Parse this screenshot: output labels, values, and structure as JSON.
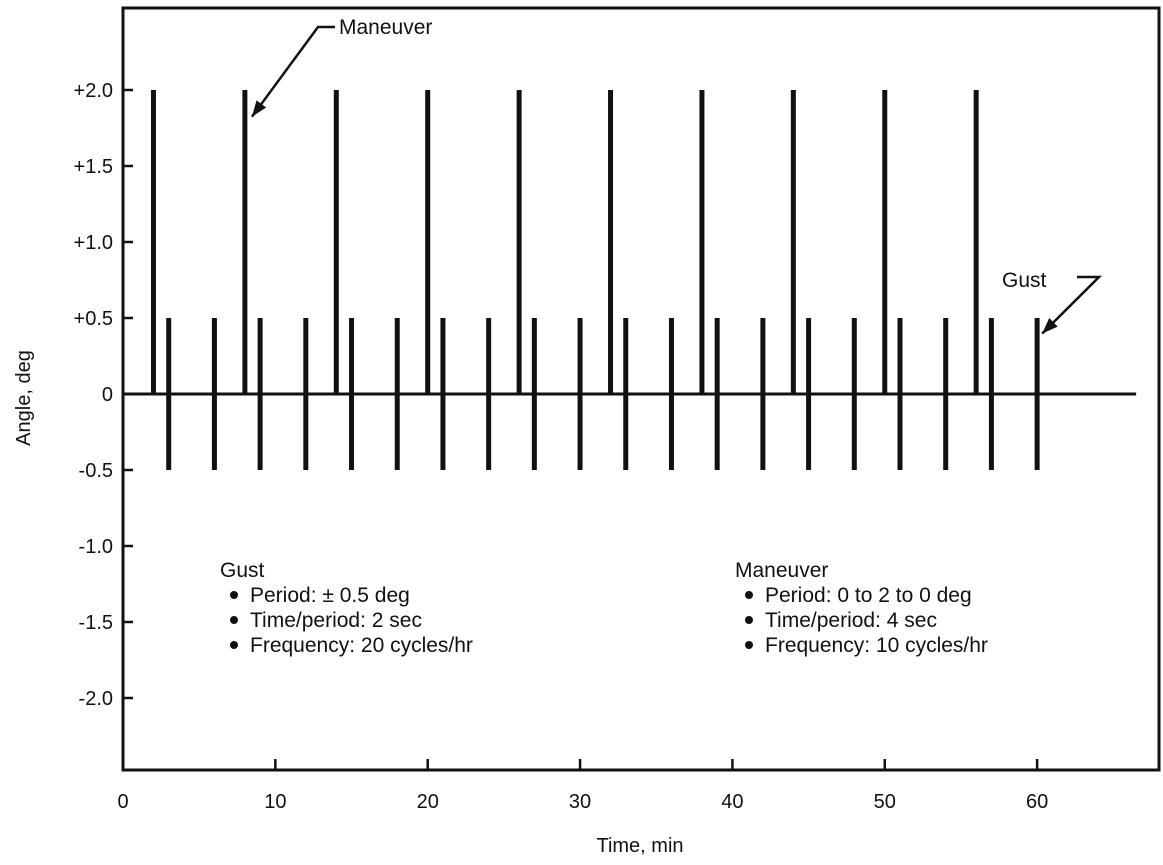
{
  "chart_data": {
    "type": "bar",
    "title": "",
    "xlabel": "Time, min",
    "ylabel": "Angle, deg",
    "xlim": [
      0,
      68
    ],
    "ylim": [
      -2.5,
      2.5
    ],
    "grid": false,
    "x_ticks": [
      0,
      10,
      20,
      30,
      40,
      50,
      60
    ],
    "x_tick_labels": [
      "0",
      "10",
      "20",
      "30",
      "40",
      "50",
      "60"
    ],
    "y_ticks": [
      2.0,
      1.5,
      1.0,
      0.5,
      0,
      -0.5,
      -1.0,
      -1.5,
      -2.0
    ],
    "y_tick_labels": [
      "+2.0",
      "+1.5",
      "+1.0",
      "+0.5",
      "0",
      "-0.5",
      "-1.0",
      "-1.5",
      "-2.0"
    ],
    "series": [
      {
        "name": "Maneuver",
        "kind": "spike",
        "range": [
          0,
          2.0
        ],
        "x": [
          2,
          8,
          14,
          20,
          26,
          32,
          38,
          44,
          50,
          56
        ]
      },
      {
        "name": "Gust",
        "kind": "spike",
        "range": [
          -0.5,
          0.5
        ],
        "x": [
          3,
          6,
          9,
          12,
          15,
          18,
          21,
          24,
          27,
          30,
          33,
          36,
          39,
          42,
          45,
          48,
          51,
          54,
          57,
          60
        ]
      }
    ],
    "annotations": [
      {
        "text": "Maneuver",
        "target_series": "Maneuver",
        "target_x": 8,
        "target_y": 1.85
      },
      {
        "text": "Gust",
        "target_series": "Gust",
        "target_x": 60,
        "target_y": 0.45
      }
    ],
    "legend": [
      {
        "title": "Gust",
        "items": [
          "Period: ± 0.5 deg",
          "Time/period: 2 sec",
          "Frequency: 20 cycles/hr"
        ]
      },
      {
        "title": "Maneuver",
        "items": [
          "Period: 0 to 2 to 0 deg",
          "Time/period: 4 sec",
          "Frequency: 10 cycles/hr"
        ]
      }
    ],
    "legend_placement": "bottom, inside plot"
  }
}
